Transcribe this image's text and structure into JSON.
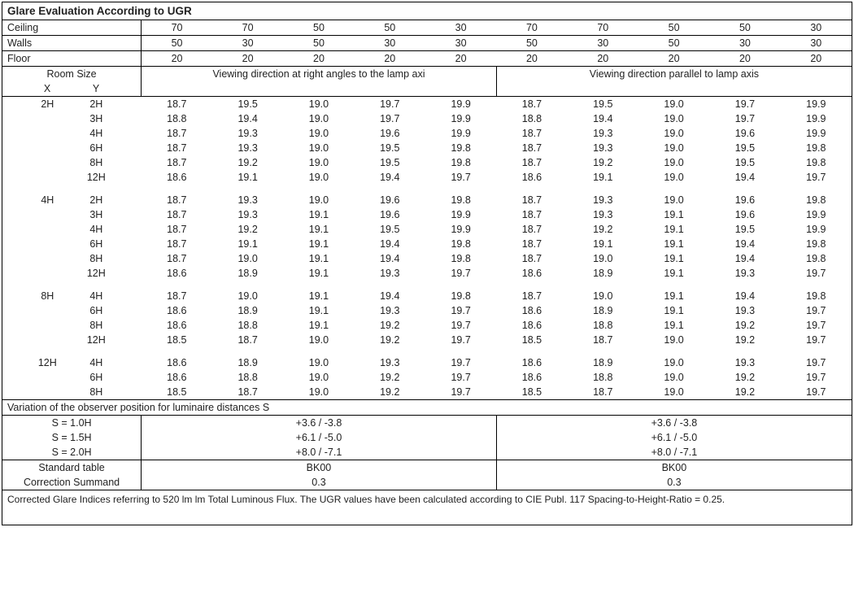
{
  "title": "Glare Evaluation According to UGR",
  "header_rows": [
    {
      "label": "Ceiling",
      "vals": [
        "70",
        "70",
        "50",
        "50",
        "30",
        "70",
        "70",
        "50",
        "50",
        "30"
      ]
    },
    {
      "label": "Walls",
      "vals": [
        "50",
        "30",
        "50",
        "30",
        "30",
        "50",
        "30",
        "50",
        "30",
        "30"
      ]
    },
    {
      "label": "Floor",
      "vals": [
        "20",
        "20",
        "20",
        "20",
        "20",
        "20",
        "20",
        "20",
        "20",
        "20"
      ]
    }
  ],
  "room_size_label": "Room Size",
  "x_label": "X",
  "y_label": "Y",
  "view_right_label": "Viewing direction at right angles to the lamp axi",
  "view_par_label": "Viewing direction parallel to lamp axis",
  "groups": [
    {
      "x": "2H",
      "rows": [
        {
          "y": "2H",
          "v": [
            "18.7",
            "19.5",
            "19.0",
            "19.7",
            "19.9",
            "18.7",
            "19.5",
            "19.0",
            "19.7",
            "19.9"
          ]
        },
        {
          "y": "3H",
          "v": [
            "18.8",
            "19.4",
            "19.0",
            "19.7",
            "19.9",
            "18.8",
            "19.4",
            "19.0",
            "19.7",
            "19.9"
          ]
        },
        {
          "y": "4H",
          "v": [
            "18.7",
            "19.3",
            "19.0",
            "19.6",
            "19.9",
            "18.7",
            "19.3",
            "19.0",
            "19.6",
            "19.9"
          ]
        },
        {
          "y": "6H",
          "v": [
            "18.7",
            "19.3",
            "19.0",
            "19.5",
            "19.8",
            "18.7",
            "19.3",
            "19.0",
            "19.5",
            "19.8"
          ]
        },
        {
          "y": "8H",
          "v": [
            "18.7",
            "19.2",
            "19.0",
            "19.5",
            "19.8",
            "18.7",
            "19.2",
            "19.0",
            "19.5",
            "19.8"
          ]
        },
        {
          "y": "12H",
          "v": [
            "18.6",
            "19.1",
            "19.0",
            "19.4",
            "19.7",
            "18.6",
            "19.1",
            "19.0",
            "19.4",
            "19.7"
          ]
        }
      ]
    },
    {
      "x": "4H",
      "rows": [
        {
          "y": "2H",
          "v": [
            "18.7",
            "19.3",
            "19.0",
            "19.6",
            "19.8",
            "18.7",
            "19.3",
            "19.0",
            "19.6",
            "19.8"
          ]
        },
        {
          "y": "3H",
          "v": [
            "18.7",
            "19.3",
            "19.1",
            "19.6",
            "19.9",
            "18.7",
            "19.3",
            "19.1",
            "19.6",
            "19.9"
          ]
        },
        {
          "y": "4H",
          "v": [
            "18.7",
            "19.2",
            "19.1",
            "19.5",
            "19.9",
            "18.7",
            "19.2",
            "19.1",
            "19.5",
            "19.9"
          ]
        },
        {
          "y": "6H",
          "v": [
            "18.7",
            "19.1",
            "19.1",
            "19.4",
            "19.8",
            "18.7",
            "19.1",
            "19.1",
            "19.4",
            "19.8"
          ]
        },
        {
          "y": "8H",
          "v": [
            "18.7",
            "19.0",
            "19.1",
            "19.4",
            "19.8",
            "18.7",
            "19.0",
            "19.1",
            "19.4",
            "19.8"
          ]
        },
        {
          "y": "12H",
          "v": [
            "18.6",
            "18.9",
            "19.1",
            "19.3",
            "19.7",
            "18.6",
            "18.9",
            "19.1",
            "19.3",
            "19.7"
          ]
        }
      ]
    },
    {
      "x": "8H",
      "rows": [
        {
          "y": "4H",
          "v": [
            "18.7",
            "19.0",
            "19.1",
            "19.4",
            "19.8",
            "18.7",
            "19.0",
            "19.1",
            "19.4",
            "19.8"
          ]
        },
        {
          "y": "6H",
          "v": [
            "18.6",
            "18.9",
            "19.1",
            "19.3",
            "19.7",
            "18.6",
            "18.9",
            "19.1",
            "19.3",
            "19.7"
          ]
        },
        {
          "y": "8H",
          "v": [
            "18.6",
            "18.8",
            "19.1",
            "19.2",
            "19.7",
            "18.6",
            "18.8",
            "19.1",
            "19.2",
            "19.7"
          ]
        },
        {
          "y": "12H",
          "v": [
            "18.5",
            "18.7",
            "19.0",
            "19.2",
            "19.7",
            "18.5",
            "18.7",
            "19.0",
            "19.2",
            "19.7"
          ]
        }
      ]
    },
    {
      "x": "12H",
      "rows": [
        {
          "y": "4H",
          "v": [
            "18.6",
            "18.9",
            "19.0",
            "19.3",
            "19.7",
            "18.6",
            "18.9",
            "19.0",
            "19.3",
            "19.7"
          ]
        },
        {
          "y": "6H",
          "v": [
            "18.6",
            "18.8",
            "19.0",
            "19.2",
            "19.7",
            "18.6",
            "18.8",
            "19.0",
            "19.2",
            "19.7"
          ]
        },
        {
          "y": "8H",
          "v": [
            "18.5",
            "18.7",
            "19.0",
            "19.2",
            "19.7",
            "18.5",
            "18.7",
            "19.0",
            "19.2",
            "19.7"
          ]
        }
      ]
    }
  ],
  "variation_label": "Variation of the observer position for luminaire distances S",
  "variations": [
    {
      "s": "S = 1.0H",
      "left": "+3.6 / -3.8",
      "right": "+3.6 / -3.8"
    },
    {
      "s": "S = 1.5H",
      "left": "+6.1 / -5.0",
      "right": "+6.1 / -5.0"
    },
    {
      "s": "S = 2.0H",
      "left": "+8.0 / -7.1",
      "right": "+8.0 / -7.1"
    }
  ],
  "std_label": "Standard table",
  "std_left": "BK00",
  "std_right": "BK00",
  "corr_label": "Correction Summand",
  "corr_left": "0.3",
  "corr_right": "0.3",
  "footer": "Corrected Glare Indices referring to 520 lm lm Total Luminous Flux. The UGR values have been calculated according to CIE Publ. 117    Spacing-to-Height-Ratio = 0.25."
}
